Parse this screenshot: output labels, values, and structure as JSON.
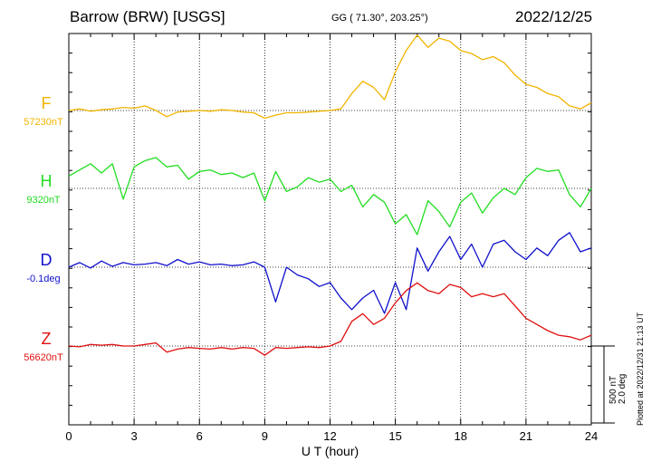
{
  "header": {
    "title": "Barrow (BRW)  [USGS]",
    "coords": "GG ( 71.30°, 203.25°)",
    "date": "2022/12/25"
  },
  "plotted_note": "Plotted at 2022/12/31 21:13 UT",
  "scale": {
    "nt_label": "500 nT",
    "deg_label": "2.0 deg"
  },
  "colors": {
    "F": "#f0b400",
    "H": "#22dd22",
    "D": "#1010cc",
    "Z": "#e01010"
  },
  "chart_data": {
    "type": "line",
    "xlabel": "U T (hour)",
    "xlim": [
      0,
      24
    ],
    "xticks": [
      "0",
      "3",
      "6",
      "9",
      "12",
      "15",
      "18",
      "21",
      "24"
    ],
    "units": {
      "F": "nT",
      "H": "nT",
      "D": "deg",
      "Z": "nT"
    },
    "series": [
      {
        "name": "F",
        "baseline_label": "57230nT",
        "baseline": 57230,
        "x": [
          0,
          0.5,
          1,
          1.5,
          2,
          2.5,
          3,
          3.5,
          4,
          4.5,
          5,
          5.5,
          6,
          6.5,
          7,
          7.5,
          8,
          8.5,
          9,
          9.5,
          10,
          10.5,
          11,
          11.5,
          12,
          12.5,
          13,
          13.5,
          14,
          14.5,
          15,
          15.5,
          16,
          16.5,
          17,
          17.5,
          18,
          18.5,
          19,
          19.5,
          20,
          20.5,
          21,
          21.5,
          22,
          22.5,
          23,
          23.5,
          24
        ],
        "y": [
          57230,
          57240,
          57225,
          57235,
          57240,
          57250,
          57245,
          57260,
          57230,
          57190,
          57220,
          57225,
          57230,
          57225,
          57235,
          57230,
          57220,
          57215,
          57180,
          57200,
          57215,
          57215,
          57220,
          57225,
          57230,
          57240,
          57340,
          57420,
          57380,
          57300,
          57480,
          57620,
          57720,
          57640,
          57700,
          57680,
          57620,
          57600,
          57560,
          57580,
          57540,
          57460,
          57400,
          57380,
          57340,
          57320,
          57260,
          57240,
          57280
        ]
      },
      {
        "name": "H",
        "baseline_label": "9320nT",
        "baseline": 9320,
        "x": [
          0,
          0.5,
          1,
          1.5,
          2,
          2.5,
          3,
          3.5,
          4,
          4.5,
          5,
          5.5,
          6,
          6.5,
          7,
          7.5,
          8,
          8.5,
          9,
          9.5,
          10,
          10.5,
          11,
          11.5,
          12,
          12.5,
          13,
          13.5,
          14,
          14.5,
          15,
          15.5,
          16,
          16.5,
          17,
          17.5,
          18,
          18.5,
          19,
          19.5,
          20,
          20.5,
          21,
          21.5,
          22,
          22.5,
          23,
          23.5,
          24
        ],
        "y": [
          9400,
          9440,
          9480,
          9420,
          9480,
          9250,
          9460,
          9500,
          9520,
          9460,
          9470,
          9380,
          9430,
          9440,
          9410,
          9420,
          9390,
          9420,
          9240,
          9430,
          9300,
          9330,
          9390,
          9360,
          9380,
          9300,
          9340,
          9200,
          9280,
          9230,
          9090,
          9150,
          9020,
          9240,
          9170,
          9070,
          9230,
          9290,
          9160,
          9260,
          9320,
          9280,
          9390,
          9450,
          9430,
          9440,
          9280,
          9200,
          9320
        ]
      },
      {
        "name": "D",
        "baseline_label": "-0.1deg",
        "baseline": -0.1,
        "x": [
          0,
          0.5,
          1,
          1.5,
          2,
          2.5,
          3,
          3.5,
          4,
          4.5,
          5,
          5.5,
          6,
          6.5,
          7,
          7.5,
          8,
          8.5,
          9,
          9.5,
          10,
          10.5,
          11,
          11.5,
          12,
          12.5,
          13,
          13.5,
          14,
          14.5,
          15,
          15.5,
          16,
          16.5,
          17,
          17.5,
          18,
          18.5,
          19,
          19.5,
          20,
          20.5,
          21,
          21.5,
          22,
          22.5,
          23,
          23.5,
          24
        ],
        "y": [
          -0.1,
          0.02,
          -0.12,
          0.06,
          -0.08,
          0.02,
          -0.04,
          -0.02,
          0.02,
          -0.06,
          0.1,
          -0.02,
          0.04,
          -0.04,
          -0.02,
          -0.06,
          -0.04,
          0.04,
          -0.1,
          -1.0,
          -0.1,
          -0.3,
          -0.4,
          -0.6,
          -0.5,
          -0.9,
          -1.2,
          -0.9,
          -0.7,
          -1.3,
          -0.5,
          -1.2,
          0.4,
          -0.2,
          0.3,
          0.7,
          0.1,
          0.5,
          -0.1,
          0.5,
          0.6,
          0.3,
          0.1,
          0.4,
          0.2,
          0.6,
          0.8,
          0.3,
          0.4
        ]
      },
      {
        "name": "Z",
        "baseline_label": "56620nT",
        "baseline": 56620,
        "x": [
          0,
          0.5,
          1,
          1.5,
          2,
          2.5,
          3,
          3.5,
          4,
          4.5,
          5,
          5.5,
          6,
          6.5,
          7,
          7.5,
          8,
          8.5,
          9,
          9.5,
          10,
          10.5,
          11,
          11.5,
          12,
          12.5,
          13,
          13.5,
          14,
          14.5,
          15,
          15.5,
          16,
          16.5,
          17,
          17.5,
          18,
          18.5,
          19,
          19.5,
          20,
          20.5,
          21,
          21.5,
          22,
          22.5,
          23,
          23.5,
          24
        ],
        "y": [
          56620,
          56615,
          56630,
          56625,
          56630,
          56620,
          56620,
          56630,
          56640,
          56580,
          56600,
          56610,
          56605,
          56600,
          56610,
          56600,
          56610,
          56605,
          56560,
          56610,
          56605,
          56610,
          56615,
          56610,
          56620,
          56650,
          56780,
          56830,
          56760,
          56800,
          56900,
          56980,
          57030,
          56980,
          56960,
          57020,
          57000,
          56940,
          56960,
          56940,
          56960,
          56880,
          56800,
          56760,
          56720,
          56690,
          56680,
          56660,
          56690
        ]
      }
    ]
  }
}
